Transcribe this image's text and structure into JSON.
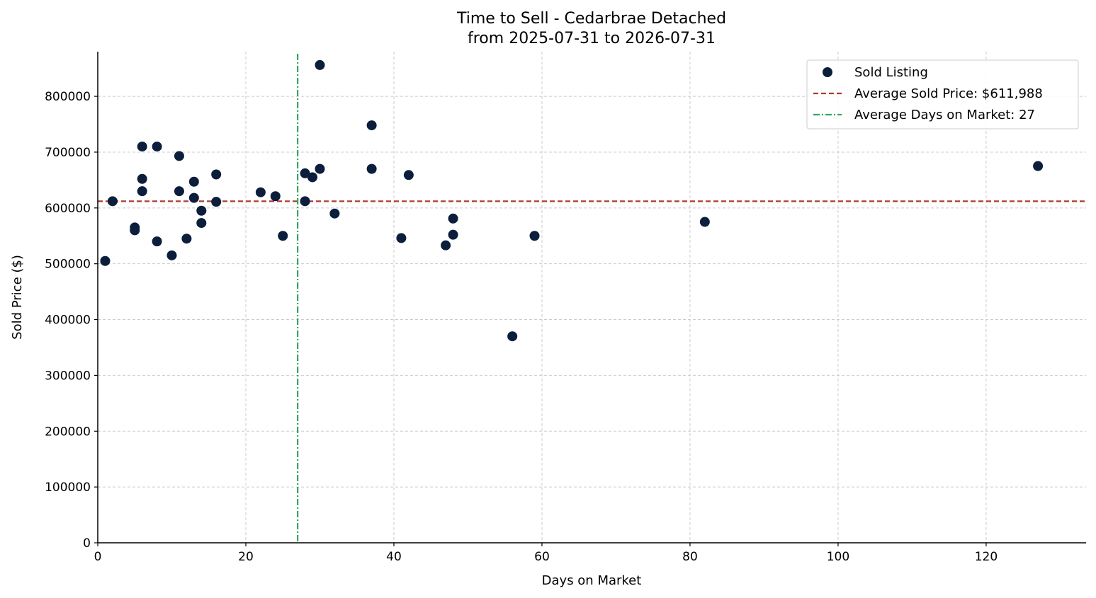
{
  "chart_data": {
    "type": "scatter",
    "title": "Time to Sell - Cedarbrae Detached",
    "subtitle": "from 2025-07-31 to 2026-07-31",
    "xlabel": "Days on Market",
    "ylabel": "Sold Price ($)",
    "xlim": [
      0,
      133.5
    ],
    "ylim": [
      0,
      880000
    ],
    "xticks": [
      0,
      20,
      40,
      60,
      80,
      100,
      120
    ],
    "yticks": [
      0,
      100000,
      200000,
      300000,
      400000,
      500000,
      600000,
      700000,
      800000
    ],
    "grid": true,
    "legend_placement": "top-right",
    "series": [
      {
        "name": "Sold Listing",
        "color": "#0b1e3c",
        "points": [
          [
            1,
            505000
          ],
          [
            2,
            612000
          ],
          [
            5,
            565000
          ],
          [
            5,
            560000
          ],
          [
            6,
            710000
          ],
          [
            6,
            652000
          ],
          [
            6,
            630000
          ],
          [
            8,
            710000
          ],
          [
            8,
            540000
          ],
          [
            10,
            515000
          ],
          [
            11,
            693000
          ],
          [
            11,
            630000
          ],
          [
            12,
            545000
          ],
          [
            13,
            647000
          ],
          [
            13,
            618000
          ],
          [
            14,
            595000
          ],
          [
            14,
            573000
          ],
          [
            16,
            660000
          ],
          [
            16,
            611000
          ],
          [
            22,
            628000
          ],
          [
            24,
            621000
          ],
          [
            25,
            550000
          ],
          [
            28,
            662000
          ],
          [
            28,
            612000
          ],
          [
            29,
            655000
          ],
          [
            30,
            856000
          ],
          [
            30,
            670000
          ],
          [
            32,
            590000
          ],
          [
            37,
            748000
          ],
          [
            37,
            670000
          ],
          [
            41,
            546000
          ],
          [
            42,
            659000
          ],
          [
            47,
            533000
          ],
          [
            48,
            581000
          ],
          [
            48,
            552000
          ],
          [
            56,
            370000
          ],
          [
            59,
            550000
          ],
          [
            82,
            575000
          ],
          [
            127,
            675000
          ]
        ]
      }
    ],
    "reference_lines": [
      {
        "name": "Average Sold Price: $611,988",
        "orientation": "horizontal",
        "value": 611988,
        "color": "#b03a2e",
        "style": "dashed"
      },
      {
        "name": "Average Days on Market: 27",
        "orientation": "vertical",
        "value": 27,
        "color": "#2eaa5e",
        "style": "dashdot"
      }
    ]
  }
}
